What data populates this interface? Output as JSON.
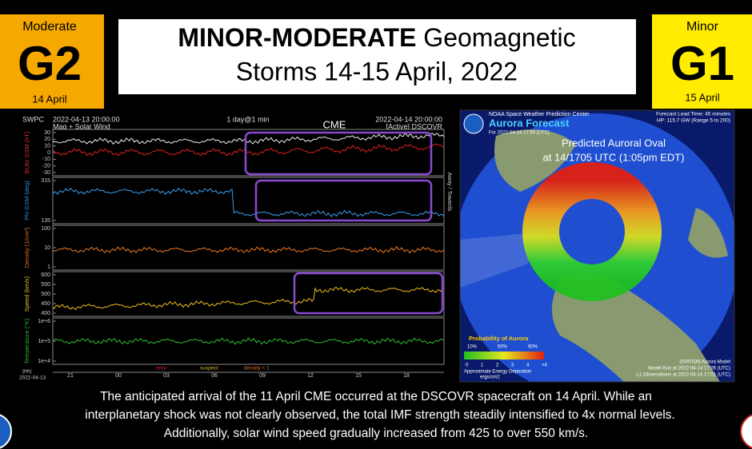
{
  "left_badge": {
    "level": "Moderate",
    "scale": "G2",
    "date": "14 April"
  },
  "title": {
    "bold": "MINOR-MODERATE",
    "rest": "Geomagnetic",
    "line2": "Storms 14-15 April, 2022"
  },
  "right_badge": {
    "level": "Minor",
    "scale": "G1",
    "date": "15 April"
  },
  "plot": {
    "source": "SWPC",
    "start": "2022-04-13 20:00:00",
    "span": "1 day@1 min",
    "end": "2022-04-14 20:00:00",
    "subtitle": "Mag + Solar Wind",
    "status": "[Active] DSCOVR",
    "annotation": "CME",
    "side_label": "Away / Towards",
    "panels": [
      {
        "label": "Bt,Bz GSM (nT)",
        "ticks": [
          "30",
          "20",
          "10",
          "0",
          "-10",
          "-20",
          "-30"
        ]
      },
      {
        "label": "Phi GSM (deg)",
        "ticks": [
          "315",
          "135"
        ]
      },
      {
        "label": "Density (1/cm³)",
        "ticks": [
          "100",
          "10",
          "1"
        ]
      },
      {
        "label": "Speed (km/s)",
        "ticks": [
          "600",
          "550",
          "500",
          "450",
          "400"
        ]
      },
      {
        "label": "Temperature (°K)",
        "ticks": [
          "1e+6",
          "1e+5",
          "1e+4"
        ]
      }
    ],
    "legend": [
      "error",
      "suspect",
      "density < 1"
    ],
    "x_unit": "(hh)",
    "x_date": "2022-04-13",
    "x_ticks": [
      "21",
      "00",
      "03",
      "06",
      "09",
      "12",
      "15",
      "18"
    ]
  },
  "map": {
    "agency": "NOAA Space Weather Prediction Center",
    "title": "Aurora Forecast",
    "valid": "For 2022-04-14 17:50 (UTC)",
    "lead": "Forecast Lead Time: 45 minutes",
    "power": "HP: 115.7 GW (Range 5 to 200)",
    "callout": [
      "Predicted Auroral Oval",
      "at 14/1705 UTC (1:05pm EDT)"
    ],
    "legend_title": "Probability of Aurora",
    "prob_ticks": [
      "10%",
      "50%",
      "90%"
    ],
    "energy_ticks": [
      "0",
      "1",
      "2",
      "3",
      "4",
      ">4"
    ],
    "energy_label": "Approximate Energy Deposition",
    "energy_unit": "ergs/cm2",
    "model": [
      "OVATION Aurora Model",
      "Model Run at 2022-04-14 17:05 (UTC)",
      "L1 Observations at 2022-04-14 17:01 (UTC)"
    ]
  },
  "caption": [
    "The anticipated arrival of the 11 April CME occurred at the DSCOVR spacecraft on 14 April. While an",
    "interplanetary shock was not clearly observed, the total IMF strength steadily intensified to 4x normal levels.",
    "Additionally, solar wind speed gradually increased from 425 to over 550 km/s."
  ]
}
